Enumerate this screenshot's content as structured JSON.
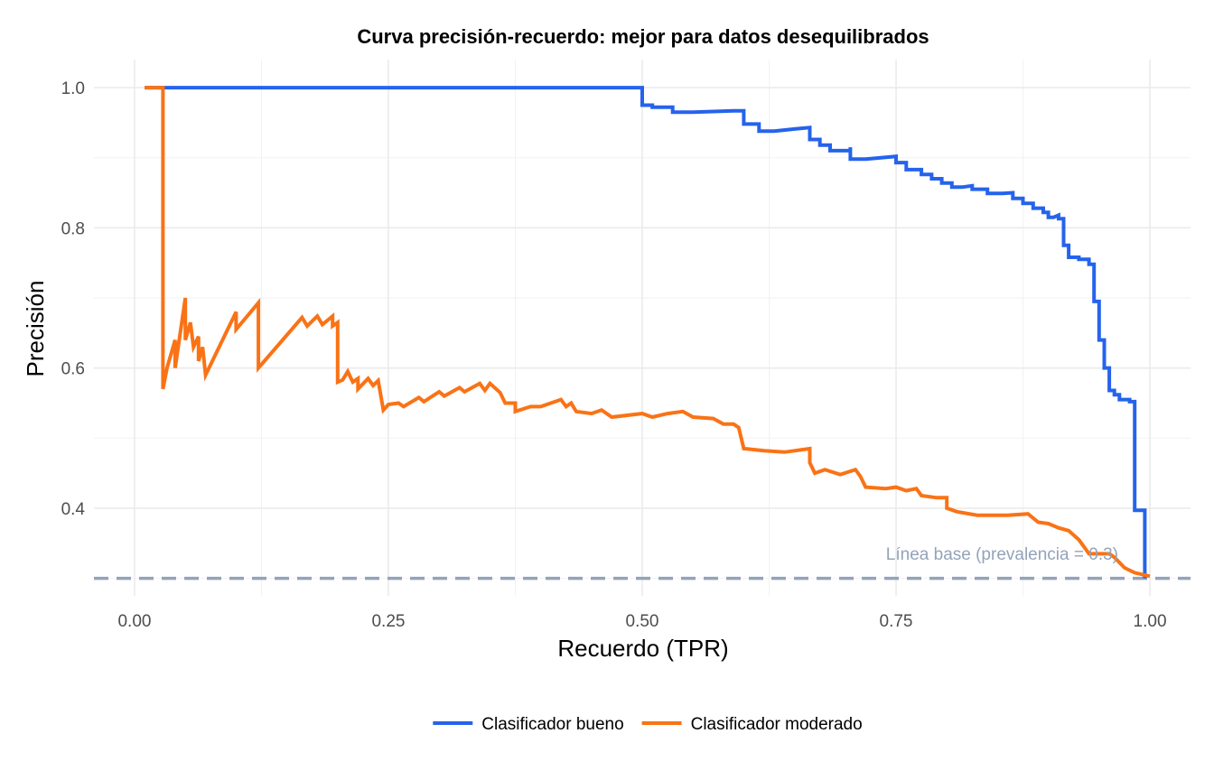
{
  "chart_data": {
    "type": "line",
    "title": "Curva precisión-recuerdo: mejor para datos desequilibrados",
    "xlabel": "Recuerdo (TPR)",
    "ylabel": "Precisión",
    "xlim": [
      -0.04,
      1.04
    ],
    "ylim": [
      0.275,
      1.04
    ],
    "x_ticks": [
      0.0,
      0.25,
      0.5,
      0.75,
      1.0
    ],
    "x_tick_labels": [
      "0.00",
      "0.25",
      "0.50",
      "0.75",
      "1.00"
    ],
    "y_ticks": [
      0.4,
      0.6,
      0.8,
      1.0
    ],
    "y_tick_labels": [
      "0.4",
      "0.6",
      "0.8",
      "1.0"
    ],
    "grid": true,
    "legend_position": "bottom",
    "baseline": {
      "y": 0.3,
      "label": "Línea base (prevalencia = 0.3)",
      "color": "#94a3b8"
    },
    "series": [
      {
        "name": "Clasificador bueno",
        "color": "#2563eb",
        "step": true,
        "points": [
          [
            0.01,
            1.0
          ],
          [
            0.5,
            1.0
          ],
          [
            0.5,
            0.975
          ],
          [
            0.51,
            0.975
          ],
          [
            0.51,
            0.972
          ],
          [
            0.53,
            0.972
          ],
          [
            0.53,
            0.965
          ],
          [
            0.55,
            0.965
          ],
          [
            0.57,
            0.966
          ],
          [
            0.59,
            0.967
          ],
          [
            0.6,
            0.967
          ],
          [
            0.6,
            0.948
          ],
          [
            0.615,
            0.948
          ],
          [
            0.615,
            0.938
          ],
          [
            0.63,
            0.938
          ],
          [
            0.65,
            0.941
          ],
          [
            0.665,
            0.943
          ],
          [
            0.665,
            0.926
          ],
          [
            0.675,
            0.926
          ],
          [
            0.675,
            0.918
          ],
          [
            0.685,
            0.918
          ],
          [
            0.685,
            0.91
          ],
          [
            0.705,
            0.91
          ],
          [
            0.705,
            0.912
          ],
          [
            0.705,
            0.915
          ],
          [
            0.705,
            0.898
          ],
          [
            0.72,
            0.898
          ],
          [
            0.735,
            0.9
          ],
          [
            0.75,
            0.902
          ],
          [
            0.75,
            0.893
          ],
          [
            0.76,
            0.893
          ],
          [
            0.76,
            0.883
          ],
          [
            0.775,
            0.883
          ],
          [
            0.775,
            0.876
          ],
          [
            0.785,
            0.876
          ],
          [
            0.785,
            0.87
          ],
          [
            0.795,
            0.87
          ],
          [
            0.795,
            0.864
          ],
          [
            0.805,
            0.864
          ],
          [
            0.805,
            0.858
          ],
          [
            0.815,
            0.858
          ],
          [
            0.825,
            0.86
          ],
          [
            0.825,
            0.855
          ],
          [
            0.84,
            0.855
          ],
          [
            0.84,
            0.849
          ],
          [
            0.855,
            0.849
          ],
          [
            0.865,
            0.85
          ],
          [
            0.865,
            0.842
          ],
          [
            0.875,
            0.842
          ],
          [
            0.875,
            0.835
          ],
          [
            0.885,
            0.835
          ],
          [
            0.885,
            0.828
          ],
          [
            0.895,
            0.828
          ],
          [
            0.895,
            0.822
          ],
          [
            0.9,
            0.822
          ],
          [
            0.9,
            0.815
          ],
          [
            0.905,
            0.815
          ],
          [
            0.91,
            0.818
          ],
          [
            0.91,
            0.813
          ],
          [
            0.915,
            0.813
          ],
          [
            0.915,
            0.775
          ],
          [
            0.92,
            0.775
          ],
          [
            0.92,
            0.758
          ],
          [
            0.93,
            0.758
          ],
          [
            0.93,
            0.755
          ],
          [
            0.94,
            0.755
          ],
          [
            0.94,
            0.748
          ],
          [
            0.945,
            0.748
          ],
          [
            0.945,
            0.695
          ],
          [
            0.95,
            0.695
          ],
          [
            0.95,
            0.64
          ],
          [
            0.955,
            0.64
          ],
          [
            0.955,
            0.6
          ],
          [
            0.96,
            0.6
          ],
          [
            0.96,
            0.568
          ],
          [
            0.965,
            0.568
          ],
          [
            0.965,
            0.562
          ],
          [
            0.97,
            0.562
          ],
          [
            0.97,
            0.555
          ],
          [
            0.98,
            0.555
          ],
          [
            0.98,
            0.552
          ],
          [
            0.985,
            0.552
          ],
          [
            0.985,
            0.397
          ],
          [
            0.995,
            0.397
          ],
          [
            0.995,
            0.3
          ]
        ]
      },
      {
        "name": "Clasificador moderado",
        "color": "#f97316",
        "step": false,
        "points": [
          [
            0.01,
            1.0
          ],
          [
            0.028,
            1.0
          ],
          [
            0.028,
            0.57
          ],
          [
            0.032,
            0.6
          ],
          [
            0.04,
            0.64
          ],
          [
            0.04,
            0.6
          ],
          [
            0.05,
            0.7
          ],
          [
            0.05,
            0.64
          ],
          [
            0.055,
            0.665
          ],
          [
            0.058,
            0.63
          ],
          [
            0.063,
            0.645
          ],
          [
            0.063,
            0.61
          ],
          [
            0.067,
            0.63
          ],
          [
            0.07,
            0.59
          ],
          [
            0.1,
            0.68
          ],
          [
            0.1,
            0.655
          ],
          [
            0.122,
            0.693
          ],
          [
            0.122,
            0.6
          ],
          [
            0.165,
            0.672
          ],
          [
            0.17,
            0.66
          ],
          [
            0.18,
            0.674
          ],
          [
            0.185,
            0.662
          ],
          [
            0.195,
            0.674
          ],
          [
            0.195,
            0.66
          ],
          [
            0.2,
            0.665
          ],
          [
            0.2,
            0.58
          ],
          [
            0.205,
            0.583
          ],
          [
            0.21,
            0.595
          ],
          [
            0.215,
            0.58
          ],
          [
            0.22,
            0.585
          ],
          [
            0.22,
            0.57
          ],
          [
            0.23,
            0.585
          ],
          [
            0.235,
            0.575
          ],
          [
            0.24,
            0.582
          ],
          [
            0.245,
            0.54
          ],
          [
            0.25,
            0.548
          ],
          [
            0.26,
            0.55
          ],
          [
            0.265,
            0.545
          ],
          [
            0.28,
            0.558
          ],
          [
            0.285,
            0.552
          ],
          [
            0.3,
            0.566
          ],
          [
            0.305,
            0.56
          ],
          [
            0.32,
            0.572
          ],
          [
            0.325,
            0.566
          ],
          [
            0.34,
            0.578
          ],
          [
            0.345,
            0.568
          ],
          [
            0.35,
            0.578
          ],
          [
            0.36,
            0.565
          ],
          [
            0.365,
            0.55
          ],
          [
            0.375,
            0.55
          ],
          [
            0.375,
            0.538
          ],
          [
            0.39,
            0.545
          ],
          [
            0.4,
            0.545
          ],
          [
            0.42,
            0.555
          ],
          [
            0.425,
            0.545
          ],
          [
            0.43,
            0.55
          ],
          [
            0.435,
            0.538
          ],
          [
            0.45,
            0.535
          ],
          [
            0.46,
            0.54
          ],
          [
            0.47,
            0.53
          ],
          [
            0.5,
            0.535
          ],
          [
            0.51,
            0.53
          ],
          [
            0.525,
            0.535
          ],
          [
            0.54,
            0.538
          ],
          [
            0.55,
            0.53
          ],
          [
            0.57,
            0.528
          ],
          [
            0.58,
            0.52
          ],
          [
            0.59,
            0.52
          ],
          [
            0.595,
            0.515
          ],
          [
            0.6,
            0.485
          ],
          [
            0.62,
            0.482
          ],
          [
            0.64,
            0.48
          ],
          [
            0.65,
            0.482
          ],
          [
            0.665,
            0.485
          ],
          [
            0.665,
            0.465
          ],
          [
            0.67,
            0.45
          ],
          [
            0.68,
            0.455
          ],
          [
            0.695,
            0.448
          ],
          [
            0.71,
            0.455
          ],
          [
            0.715,
            0.445
          ],
          [
            0.72,
            0.43
          ],
          [
            0.74,
            0.428
          ],
          [
            0.75,
            0.43
          ],
          [
            0.76,
            0.425
          ],
          [
            0.77,
            0.428
          ],
          [
            0.775,
            0.418
          ],
          [
            0.79,
            0.415
          ],
          [
            0.8,
            0.415
          ],
          [
            0.8,
            0.4
          ],
          [
            0.81,
            0.395
          ],
          [
            0.83,
            0.39
          ],
          [
            0.85,
            0.39
          ],
          [
            0.86,
            0.39
          ],
          [
            0.88,
            0.392
          ],
          [
            0.89,
            0.38
          ],
          [
            0.9,
            0.378
          ],
          [
            0.91,
            0.372
          ],
          [
            0.92,
            0.368
          ],
          [
            0.93,
            0.355
          ],
          [
            0.935,
            0.345
          ],
          [
            0.94,
            0.335
          ],
          [
            0.96,
            0.335
          ],
          [
            0.965,
            0.33
          ],
          [
            0.975,
            0.315
          ],
          [
            0.985,
            0.308
          ],
          [
            1.0,
            0.303
          ]
        ]
      }
    ]
  }
}
